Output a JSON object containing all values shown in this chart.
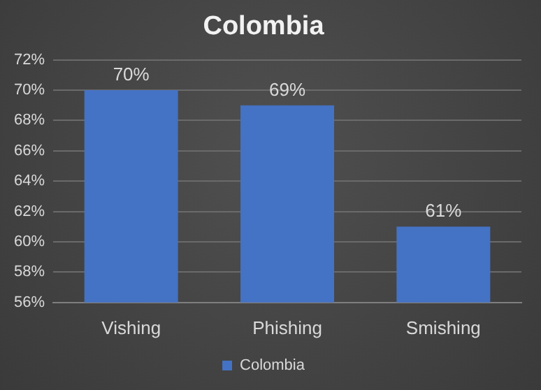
{
  "chart_data": {
    "type": "bar",
    "title": "Colombia",
    "categories": [
      "Vishing",
      "Phishing",
      "Smishing"
    ],
    "series": [
      {
        "name": "Colombia",
        "color": "#4472c4",
        "values": [
          70,
          69,
          61
        ],
        "value_labels": [
          "70%",
          "69%",
          "61%"
        ]
      }
    ],
    "ylim": [
      56,
      72
    ],
    "yticks": [
      {
        "value": 56,
        "label": "56%"
      },
      {
        "value": 58,
        "label": "58%"
      },
      {
        "value": 60,
        "label": "60%"
      },
      {
        "value": 62,
        "label": "62%"
      },
      {
        "value": 64,
        "label": "64%"
      },
      {
        "value": 66,
        "label": "66%"
      },
      {
        "value": 68,
        "label": "68%"
      },
      {
        "value": 70,
        "label": "70%"
      },
      {
        "value": 72,
        "label": "72%"
      }
    ],
    "grid": "y",
    "legend": "bottom"
  }
}
